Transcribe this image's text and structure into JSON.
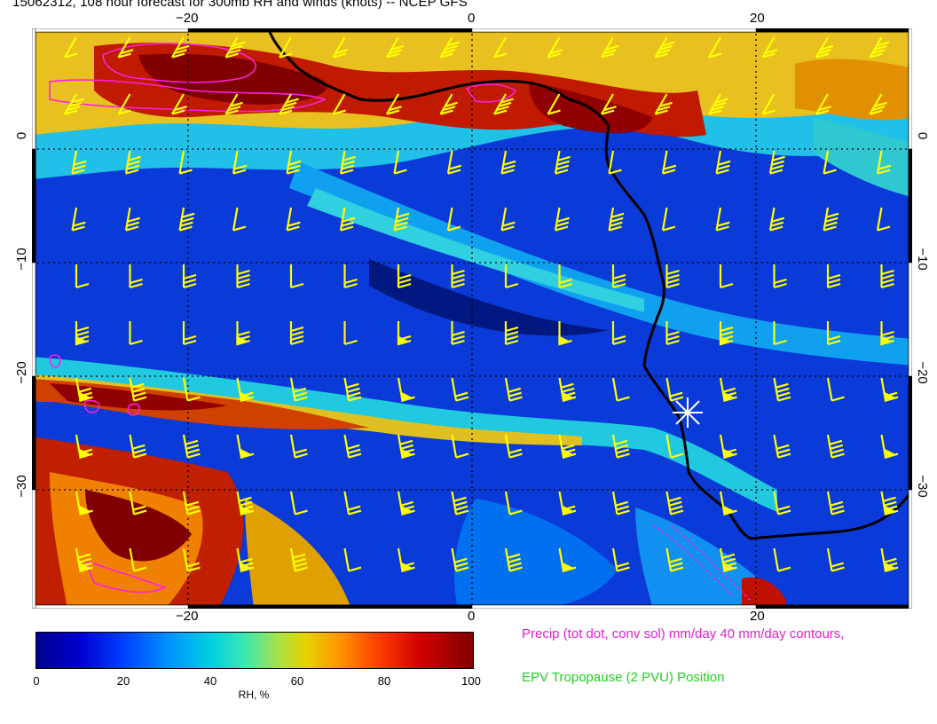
{
  "title": "15062312, 108 hour forecast for 300mb RH and winds (knots) -- NCEP GFS",
  "map": {
    "lon_labels_top": [
      "−20",
      "0",
      "20"
    ],
    "lon_labels_bottom": [
      "−20",
      "0",
      "20"
    ],
    "lat_labels_left": [
      "0",
      "−10",
      "−20",
      "−30"
    ],
    "lat_labels_right": [
      "0",
      "−10",
      "−20",
      "−30"
    ],
    "lon_range": [
      -31,
      31
    ],
    "lat_range": [
      -41,
      10
    ],
    "gridline_lons": [
      -20,
      0,
      20
    ],
    "gridline_lats": [
      0,
      -10,
      -20,
      -30
    ],
    "field_colors": {
      "dry": "#00008f",
      "mid_dry": "#0050ff",
      "moist": "#20d8e0",
      "humid": "#e8d000",
      "saturated": "#b00000"
    },
    "barb_color": "#ffff00",
    "precip_contour_color": "#ff20e0",
    "coast_color": "#000000",
    "marker": "white-asterisk"
  },
  "colorbar": {
    "labels": [
      "0",
      "20",
      "40",
      "60",
      "80",
      "100"
    ],
    "title": "RH, %",
    "range": [
      0,
      100
    ]
  },
  "legend": {
    "precip": "Precip (tot dot, conv sol) mm/day 40 mm/day contours,",
    "epv": "EPV Tropopause (2 PVU) Position",
    "precip_color": "#e020d0",
    "epv_color": "#20d020"
  }
}
